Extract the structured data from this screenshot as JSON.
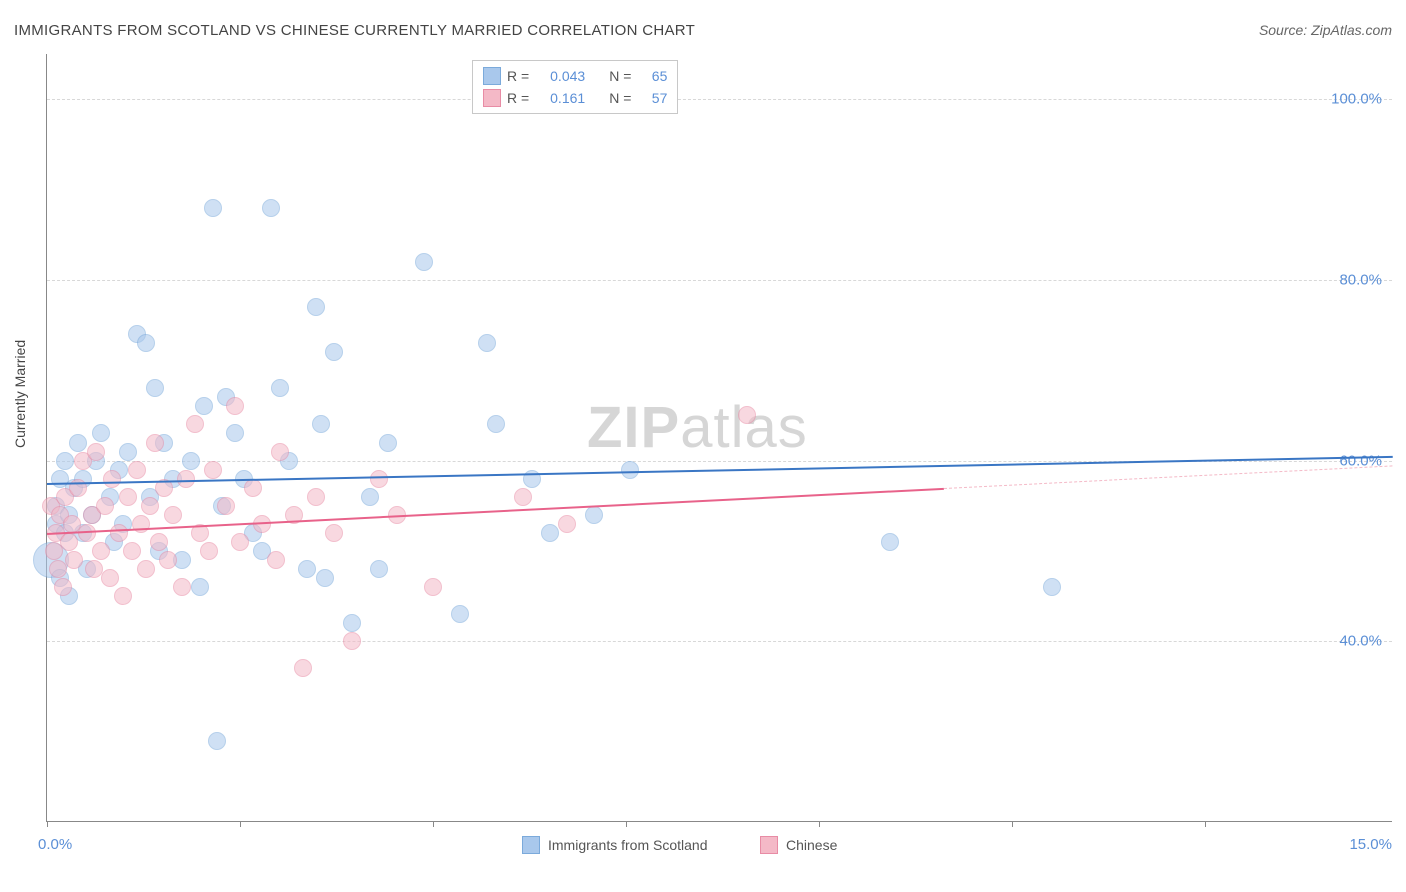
{
  "title": "IMMIGRANTS FROM SCOTLAND VS CHINESE CURRENTLY MARRIED CORRELATION CHART",
  "source": "Source: ZipAtlas.com",
  "ylabel": "Currently Married",
  "watermark_zip": "ZIP",
  "watermark_atlas": "atlas",
  "chart": {
    "type": "scatter",
    "xlim": [
      0,
      15
    ],
    "ylim": [
      20,
      105
    ],
    "x_label_min": "0.0%",
    "x_label_max": "15.0%",
    "y_gridlines": [
      40,
      60,
      80,
      100
    ],
    "y_labels": [
      "40.0%",
      "60.0%",
      "80.0%",
      "100.0%"
    ],
    "x_ticks": [
      0,
      2.15,
      4.3,
      6.45,
      8.6,
      10.75,
      12.9
    ],
    "background_color": "#ffffff",
    "grid_color": "#d8d8d8",
    "axis_color": "#888888",
    "marker_radius": 9,
    "marker_stroke": 1.5
  },
  "series": [
    {
      "name": "Immigrants from Scotland",
      "fill": "#a9c8ec",
      "stroke": "#7baadb",
      "fill_opacity": 0.55,
      "trend": {
        "x1": 0,
        "y1": 57.5,
        "x2": 15,
        "y2": 60.5,
        "color": "#3a76c4",
        "width": 2
      },
      "points": [
        [
          0.05,
          49,
          18
        ],
        [
          0.1,
          53,
          9
        ],
        [
          0.1,
          55,
          9
        ],
        [
          0.15,
          58,
          9
        ],
        [
          0.15,
          47,
          9
        ],
        [
          0.2,
          52,
          9
        ],
        [
          0.2,
          60,
          9
        ],
        [
          0.25,
          45,
          9
        ],
        [
          0.25,
          54,
          9
        ],
        [
          0.3,
          57,
          9
        ],
        [
          0.35,
          62,
          9
        ],
        [
          0.4,
          52,
          9
        ],
        [
          0.4,
          58,
          9
        ],
        [
          0.45,
          48,
          9
        ],
        [
          0.5,
          54,
          9
        ],
        [
          0.55,
          60,
          9
        ],
        [
          0.6,
          63,
          9
        ],
        [
          0.7,
          56,
          9
        ],
        [
          0.75,
          51,
          9
        ],
        [
          0.8,
          59,
          9
        ],
        [
          0.85,
          53,
          9
        ],
        [
          0.9,
          61,
          9
        ],
        [
          1.0,
          74,
          9
        ],
        [
          1.1,
          73,
          9
        ],
        [
          1.15,
          56,
          9
        ],
        [
          1.2,
          68,
          9
        ],
        [
          1.25,
          50,
          9
        ],
        [
          1.3,
          62,
          9
        ],
        [
          1.4,
          58,
          9
        ],
        [
          1.5,
          49,
          9
        ],
        [
          1.6,
          60,
          9
        ],
        [
          1.7,
          46,
          9
        ],
        [
          1.75,
          66,
          9
        ],
        [
          1.85,
          88,
          9
        ],
        [
          1.9,
          29,
          9
        ],
        [
          1.95,
          55,
          9
        ],
        [
          2.0,
          67,
          9
        ],
        [
          2.1,
          63,
          9
        ],
        [
          2.2,
          58,
          9
        ],
        [
          2.3,
          52,
          9
        ],
        [
          2.4,
          50,
          9
        ],
        [
          2.5,
          88,
          9
        ],
        [
          2.6,
          68,
          9
        ],
        [
          2.7,
          60,
          9
        ],
        [
          2.9,
          48,
          9
        ],
        [
          3.0,
          77,
          9
        ],
        [
          3.05,
          64,
          9
        ],
        [
          3.1,
          47,
          9
        ],
        [
          3.2,
          72,
          9
        ],
        [
          3.4,
          42,
          9
        ],
        [
          3.6,
          56,
          9
        ],
        [
          3.7,
          48,
          9
        ],
        [
          3.8,
          62,
          9
        ],
        [
          4.2,
          82,
          9
        ],
        [
          4.6,
          43,
          9
        ],
        [
          4.9,
          73,
          9
        ],
        [
          5.0,
          64,
          9
        ],
        [
          5.4,
          58,
          9
        ],
        [
          5.6,
          52,
          9
        ],
        [
          6.1,
          54,
          9
        ],
        [
          6.5,
          59,
          9
        ],
        [
          9.4,
          51,
          9
        ],
        [
          11.2,
          46,
          9
        ]
      ]
    },
    {
      "name": "Chinese",
      "fill": "#f4b9c7",
      "stroke": "#e88ca5",
      "fill_opacity": 0.55,
      "trend": {
        "x1": 0,
        "y1": 52,
        "x2": 10,
        "y2": 57,
        "color": "#e8628a",
        "width": 2
      },
      "trend_extend": {
        "x1": 10,
        "y1": 57,
        "x2": 15,
        "y2": 59.5,
        "color": "#f4b9c7",
        "width": 1,
        "dash": true
      },
      "points": [
        [
          0.05,
          55,
          9
        ],
        [
          0.08,
          50,
          9
        ],
        [
          0.1,
          52,
          9
        ],
        [
          0.12,
          48,
          9
        ],
        [
          0.15,
          54,
          9
        ],
        [
          0.18,
          46,
          9
        ],
        [
          0.2,
          56,
          9
        ],
        [
          0.25,
          51,
          9
        ],
        [
          0.28,
          53,
          9
        ],
        [
          0.3,
          49,
          9
        ],
        [
          0.35,
          57,
          9
        ],
        [
          0.4,
          60,
          9
        ],
        [
          0.45,
          52,
          9
        ],
        [
          0.5,
          54,
          9
        ],
        [
          0.52,
          48,
          9
        ],
        [
          0.55,
          61,
          9
        ],
        [
          0.6,
          50,
          9
        ],
        [
          0.65,
          55,
          9
        ],
        [
          0.7,
          47,
          9
        ],
        [
          0.72,
          58,
          9
        ],
        [
          0.8,
          52,
          9
        ],
        [
          0.85,
          45,
          9
        ],
        [
          0.9,
          56,
          9
        ],
        [
          0.95,
          50,
          9
        ],
        [
          1.0,
          59,
          9
        ],
        [
          1.05,
          53,
          9
        ],
        [
          1.1,
          48,
          9
        ],
        [
          1.15,
          55,
          9
        ],
        [
          1.2,
          62,
          9
        ],
        [
          1.25,
          51,
          9
        ],
        [
          1.3,
          57,
          9
        ],
        [
          1.35,
          49,
          9
        ],
        [
          1.4,
          54,
          9
        ],
        [
          1.5,
          46,
          9
        ],
        [
          1.55,
          58,
          9
        ],
        [
          1.65,
          64,
          9
        ],
        [
          1.7,
          52,
          9
        ],
        [
          1.8,
          50,
          9
        ],
        [
          1.85,
          59,
          9
        ],
        [
          2.0,
          55,
          9
        ],
        [
          2.1,
          66,
          9
        ],
        [
          2.15,
          51,
          9
        ],
        [
          2.3,
          57,
          9
        ],
        [
          2.4,
          53,
          9
        ],
        [
          2.55,
          49,
          9
        ],
        [
          2.6,
          61,
          9
        ],
        [
          2.75,
          54,
          9
        ],
        [
          2.85,
          37,
          9
        ],
        [
          3.0,
          56,
          9
        ],
        [
          3.2,
          52,
          9
        ],
        [
          3.4,
          40,
          9
        ],
        [
          3.7,
          58,
          9
        ],
        [
          3.9,
          54,
          9
        ],
        [
          4.3,
          46,
          9
        ],
        [
          5.3,
          56,
          9
        ],
        [
          5.8,
          53,
          9
        ],
        [
          7.8,
          65,
          9
        ]
      ]
    }
  ],
  "legend_top": {
    "rows": [
      {
        "swatch_fill": "#a9c8ec",
        "swatch_stroke": "#7baadb",
        "r_label": "R =",
        "r_value": "0.043",
        "n_label": "N =",
        "n_value": "65"
      },
      {
        "swatch_fill": "#f4b9c7",
        "swatch_stroke": "#e88ca5",
        "r_label": "R =",
        "r_value": "0.161",
        "n_label": "N =",
        "n_value": "57"
      }
    ]
  },
  "legend_bottom": [
    {
      "swatch_fill": "#a9c8ec",
      "swatch_stroke": "#7baadb",
      "label": "Immigrants from Scotland"
    },
    {
      "swatch_fill": "#f4b9c7",
      "swatch_stroke": "#e88ca5",
      "label": "Chinese"
    }
  ]
}
